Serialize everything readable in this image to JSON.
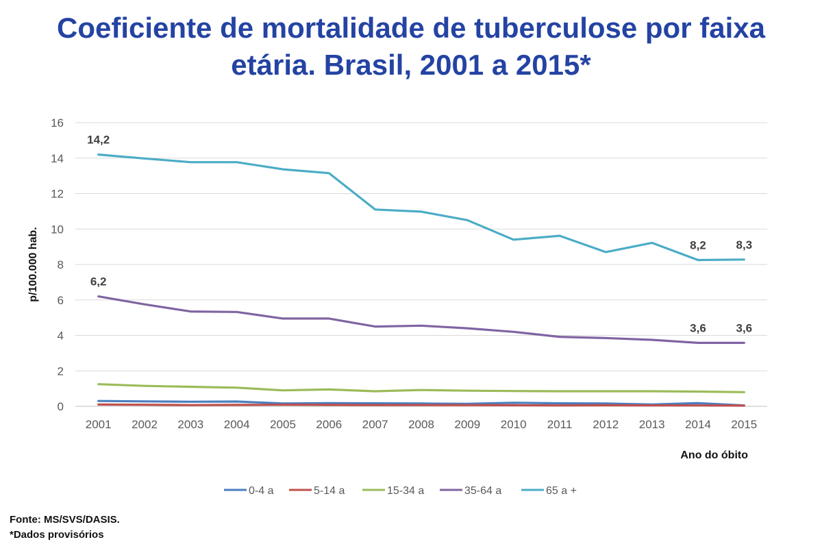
{
  "title_line1": "Coeficiente de mortalidade de tuberculose por faixa",
  "title_line2": "etária. Brasil, 2001 a 2015*",
  "footer": {
    "source": "Fonte: MS/SVS/DASIS.",
    "note": "*Dados provisórios"
  },
  "chart_data": {
    "type": "line",
    "ylabel": "p/100.000  hab.",
    "xlabel": "Ano do óbito",
    "ylim": [
      0,
      16
    ],
    "yticks": [
      0,
      2,
      4,
      6,
      8,
      10,
      12,
      14,
      16
    ],
    "grid": true,
    "legend_position": "bottom",
    "x": [
      "2001",
      "2002",
      "2003",
      "2004",
      "2005",
      "2006",
      "2007",
      "2008",
      "2009",
      "2010",
      "2011",
      "2012",
      "2013",
      "2014",
      "2015"
    ],
    "series": [
      {
        "name": "0-4 a",
        "color": "#4a7ebf",
        "values": [
          0.3,
          0.28,
          0.26,
          0.27,
          0.16,
          0.18,
          0.17,
          0.16,
          0.14,
          0.2,
          0.17,
          0.16,
          0.1,
          0.18,
          0.05
        ]
      },
      {
        "name": "5-14 a",
        "color": "#c0504d",
        "values": [
          0.1,
          0.09,
          0.07,
          0.08,
          0.09,
          0.08,
          0.07,
          0.07,
          0.07,
          0.06,
          0.05,
          0.06,
          0.05,
          0.05,
          0.04
        ]
      },
      {
        "name": "15-34 a",
        "color": "#9bbb59",
        "values": [
          1.25,
          1.15,
          1.1,
          1.05,
          0.9,
          0.95,
          0.85,
          0.92,
          0.88,
          0.86,
          0.85,
          0.85,
          0.85,
          0.83,
          0.8
        ]
      },
      {
        "name": "35-64 a",
        "color": "#8064a2",
        "values": [
          6.2,
          5.75,
          5.35,
          5.32,
          4.95,
          4.95,
          4.5,
          4.55,
          4.4,
          4.2,
          3.92,
          3.85,
          3.75,
          3.58,
          3.58
        ]
      },
      {
        "name": "65 a +",
        "color": "#4bacc6",
        "values": [
          14.2,
          13.98,
          13.77,
          13.77,
          13.37,
          13.15,
          11.1,
          10.98,
          10.5,
          9.4,
          9.62,
          8.7,
          9.22,
          8.25,
          8.28
        ]
      }
    ],
    "annotations": [
      {
        "series": 4,
        "index": 0,
        "text": "14,2"
      },
      {
        "series": 4,
        "index": 13,
        "text": "8,2"
      },
      {
        "series": 4,
        "index": 14,
        "text": "8,3"
      },
      {
        "series": 3,
        "index": 0,
        "text": "6,2"
      },
      {
        "series": 3,
        "index": 13,
        "text": "3,6"
      },
      {
        "series": 3,
        "index": 14,
        "text": "3,6"
      }
    ]
  }
}
